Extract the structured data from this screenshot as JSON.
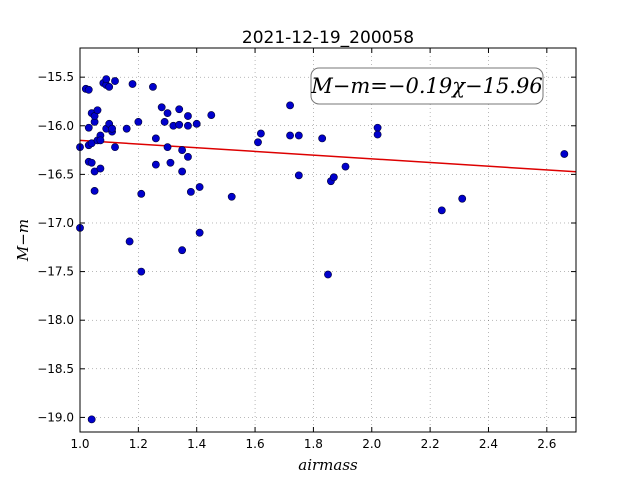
{
  "chart_data": {
    "type": "scatter",
    "title": "2021-12-19_200058",
    "xlabel": "airmass",
    "ylabel": "M−m",
    "xlim": [
      1.0,
      2.7
    ],
    "ylim": [
      -19.15,
      -15.2
    ],
    "grid": true,
    "x_ticks": [
      "1.0",
      "1.2",
      "1.4",
      "1.6",
      "1.8",
      "2.0",
      "2.2",
      "2.4",
      "2.6"
    ],
    "y_ticks": [
      "−15.5",
      "−16.0",
      "−16.5",
      "−17.0",
      "−17.5",
      "−18.0",
      "−18.5",
      "−19.0"
    ],
    "annotation": "M−m=−0.19χ−15.96",
    "fit": {
      "slope": -0.19,
      "intercept": -15.96,
      "color": "#dd0000"
    },
    "point_color": "#0000cc",
    "points": [
      [
        1.0,
        -16.22
      ],
      [
        1.0,
        -17.05
      ],
      [
        1.02,
        -15.62
      ],
      [
        1.03,
        -15.63
      ],
      [
        1.03,
        -16.02
      ],
      [
        1.03,
        -16.2
      ],
      [
        1.03,
        -16.37
      ],
      [
        1.04,
        -16.38
      ],
      [
        1.04,
        -16.18
      ],
      [
        1.04,
        -15.87
      ],
      [
        1.05,
        -15.96
      ],
      [
        1.05,
        -15.9
      ],
      [
        1.05,
        -16.47
      ],
      [
        1.05,
        -16.67
      ],
      [
        1.04,
        -19.02
      ],
      [
        1.06,
        -15.84
      ],
      [
        1.06,
        -16.15
      ],
      [
        1.07,
        -16.44
      ],
      [
        1.07,
        -16.1
      ],
      [
        1.07,
        -16.15
      ],
      [
        1.08,
        -15.56
      ],
      [
        1.09,
        -15.58
      ],
      [
        1.09,
        -15.52
      ],
      [
        1.09,
        -16.03
      ],
      [
        1.1,
        -15.98
      ],
      [
        1.1,
        -15.6
      ],
      [
        1.11,
        -16.06
      ],
      [
        1.11,
        -16.03
      ],
      [
        1.12,
        -15.54
      ],
      [
        1.12,
        -16.22
      ],
      [
        1.16,
        -16.03
      ],
      [
        1.17,
        -17.19
      ],
      [
        1.18,
        -15.57
      ],
      [
        1.2,
        -15.96
      ],
      [
        1.21,
        -16.7
      ],
      [
        1.21,
        -17.5
      ],
      [
        1.25,
        -15.6
      ],
      [
        1.26,
        -16.4
      ],
      [
        1.26,
        -16.13
      ],
      [
        1.28,
        -15.81
      ],
      [
        1.29,
        -15.96
      ],
      [
        1.3,
        -15.87
      ],
      [
        1.3,
        -16.22
      ],
      [
        1.31,
        -16.38
      ],
      [
        1.32,
        -16.0
      ],
      [
        1.34,
        -15.99
      ],
      [
        1.34,
        -15.83
      ],
      [
        1.35,
        -16.25
      ],
      [
        1.35,
        -16.47
      ],
      [
        1.35,
        -17.28
      ],
      [
        1.37,
        -15.9
      ],
      [
        1.37,
        -16.0
      ],
      [
        1.37,
        -16.32
      ],
      [
        1.38,
        -16.68
      ],
      [
        1.4,
        -15.98
      ],
      [
        1.41,
        -16.63
      ],
      [
        1.41,
        -17.1
      ],
      [
        1.45,
        -15.89
      ],
      [
        1.52,
        -16.73
      ],
      [
        1.61,
        -16.17
      ],
      [
        1.62,
        -16.08
      ],
      [
        1.72,
        -16.1
      ],
      [
        1.72,
        -15.79
      ],
      [
        1.75,
        -16.1
      ],
      [
        1.75,
        -16.51
      ],
      [
        1.83,
        -16.13
      ],
      [
        1.85,
        -17.53
      ],
      [
        1.86,
        -16.57
      ],
      [
        1.87,
        -16.53
      ],
      [
        1.91,
        -16.42
      ],
      [
        2.02,
        -16.02
      ],
      [
        2.02,
        -16.09
      ],
      [
        2.24,
        -16.87
      ],
      [
        2.31,
        -16.75
      ],
      [
        2.66,
        -16.29
      ]
    ]
  }
}
